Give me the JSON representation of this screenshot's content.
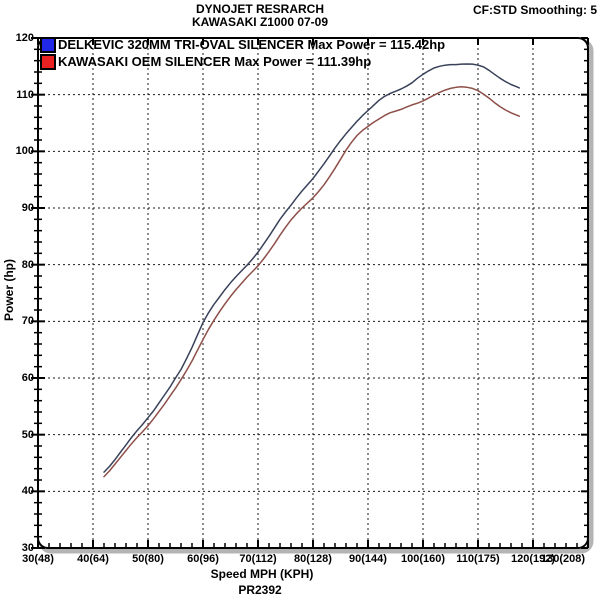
{
  "header": {
    "title_line1": "DYNOJET RESRARCH",
    "title_line2": "KAWASAKI Z1000 07-09",
    "smoothing": "CF:STD Smoothing: 5"
  },
  "footer": {
    "run_id": "PR2392"
  },
  "legend": [
    {
      "label": "DELKEVIC 320MM TRI-OVAL SILENCER  Max Power = 115.42hp",
      "swatch_color": "#2228e8"
    },
    {
      "label": "KAWASAKI OEM SILENCER Max Power = 111.39hp",
      "swatch_color": "#ea2222"
    }
  ],
  "colors": {
    "frame": "#000000",
    "grid": "#1a1a1a",
    "shadow": "#b4b4b4"
  },
  "chart_data": {
    "type": "line",
    "title": "DYNOJET RESRARCH — KAWASAKI Z1000 07-09",
    "xlabel": "Speed MPH (KPH)",
    "ylabel": "Power (hp)",
    "xlim": [
      30,
      130
    ],
    "ylim": [
      30,
      120
    ],
    "x_major_ticks": [
      30,
      40,
      50,
      60,
      70,
      80,
      90,
      100,
      110,
      120,
      130
    ],
    "x_tick_labels": [
      "30(48)",
      "40(64)",
      "50(80)",
      "60(96)",
      "70(112)",
      "80(128)",
      "90(144)",
      "100(160)",
      "110(175)",
      "120(192)",
      "130(208)"
    ],
    "y_major_ticks": [
      30,
      40,
      50,
      60,
      70,
      80,
      90,
      100,
      110,
      120
    ],
    "y_tick_labels": [
      "30",
      "40",
      "50",
      "60",
      "70",
      "80",
      "90",
      "100",
      "110",
      "120"
    ],
    "x_minor_step": 2,
    "y_minor_step": 2,
    "grid": "dashed",
    "legend_position": "top-left",
    "series": [
      {
        "name": "DELKEVIC 320MM TRI-OVAL SILENCER",
        "max_power_hp": 115.42,
        "color": "#39425a",
        "points": [
          [
            42,
            43.4
          ],
          [
            43,
            44.4
          ],
          [
            44,
            45.6
          ],
          [
            45,
            46.9
          ],
          [
            46,
            48.2
          ],
          [
            47,
            49.5
          ],
          [
            48,
            50.7
          ],
          [
            49,
            51.8
          ],
          [
            50,
            53.0
          ],
          [
            51,
            54.2
          ],
          [
            52,
            55.6
          ],
          [
            53,
            57.0
          ],
          [
            54,
            58.4
          ],
          [
            55,
            60.0
          ],
          [
            56,
            61.5
          ],
          [
            57,
            63.4
          ],
          [
            58,
            65.4
          ],
          [
            59,
            67.6
          ],
          [
            60,
            69.8
          ],
          [
            61,
            71.5
          ],
          [
            62,
            73.0
          ],
          [
            63,
            74.3
          ],
          [
            64,
            75.6
          ],
          [
            65,
            76.8
          ],
          [
            66,
            77.9
          ],
          [
            67,
            78.9
          ],
          [
            68,
            79.9
          ],
          [
            69,
            81.0
          ],
          [
            70,
            82.2
          ],
          [
            71,
            83.6
          ],
          [
            72,
            85.0
          ],
          [
            73,
            86.5
          ],
          [
            74,
            88.0
          ],
          [
            75,
            89.3
          ],
          [
            76,
            90.5
          ],
          [
            77,
            91.8
          ],
          [
            78,
            93.0
          ],
          [
            79,
            94.1
          ],
          [
            80,
            95.2
          ],
          [
            81,
            96.5
          ],
          [
            82,
            97.8
          ],
          [
            83,
            99.2
          ],
          [
            84,
            100.6
          ],
          [
            85,
            101.9
          ],
          [
            86,
            103.1
          ],
          [
            87,
            104.2
          ],
          [
            88,
            105.3
          ],
          [
            89,
            106.3
          ],
          [
            90,
            107.2
          ],
          [
            91,
            108.1
          ],
          [
            92,
            109.0
          ],
          [
            93,
            109.7
          ],
          [
            94,
            110.2
          ],
          [
            95,
            110.6
          ],
          [
            96,
            111.0
          ],
          [
            97,
            111.5
          ],
          [
            98,
            112.1
          ],
          [
            99,
            112.9
          ],
          [
            100,
            113.6
          ],
          [
            101,
            114.2
          ],
          [
            102,
            114.7
          ],
          [
            103,
            115.0
          ],
          [
            104,
            115.2
          ],
          [
            105,
            115.3
          ],
          [
            106,
            115.3
          ],
          [
            107,
            115.4
          ],
          [
            108,
            115.42
          ],
          [
            109,
            115.4
          ],
          [
            110,
            115.2
          ],
          [
            111,
            114.9
          ],
          [
            112,
            114.3
          ],
          [
            113,
            113.6
          ],
          [
            114,
            112.9
          ],
          [
            115,
            112.3
          ],
          [
            116,
            111.8
          ],
          [
            117,
            111.4
          ],
          [
            117.5,
            111.2
          ]
        ]
      },
      {
        "name": "KAWASAKI OEM SILENCER",
        "max_power_hp": 111.39,
        "color": "#8d4f49",
        "points": [
          [
            42,
            42.6
          ],
          [
            43,
            43.6
          ],
          [
            44,
            44.8
          ],
          [
            45,
            46.0
          ],
          [
            46,
            47.2
          ],
          [
            47,
            48.4
          ],
          [
            48,
            49.5
          ],
          [
            49,
            50.5
          ],
          [
            50,
            51.6
          ],
          [
            51,
            52.8
          ],
          [
            52,
            54.1
          ],
          [
            53,
            55.4
          ],
          [
            54,
            56.8
          ],
          [
            55,
            58.2
          ],
          [
            56,
            59.7
          ],
          [
            57,
            61.3
          ],
          [
            58,
            63.0
          ],
          [
            59,
            64.9
          ],
          [
            60,
            66.8
          ],
          [
            61,
            68.6
          ],
          [
            62,
            70.2
          ],
          [
            63,
            71.7
          ],
          [
            64,
            73.1
          ],
          [
            65,
            74.4
          ],
          [
            66,
            75.6
          ],
          [
            67,
            76.7
          ],
          [
            68,
            77.8
          ],
          [
            69,
            78.8
          ],
          [
            70,
            79.8
          ],
          [
            71,
            81.0
          ],
          [
            72,
            82.3
          ],
          [
            73,
            83.7
          ],
          [
            74,
            85.2
          ],
          [
            75,
            86.6
          ],
          [
            76,
            87.9
          ],
          [
            77,
            89.0
          ],
          [
            78,
            90.0
          ],
          [
            79,
            90.9
          ],
          [
            80,
            91.8
          ],
          [
            81,
            92.9
          ],
          [
            82,
            94.1
          ],
          [
            83,
            95.5
          ],
          [
            84,
            97.0
          ],
          [
            85,
            98.6
          ],
          [
            86,
            100.2
          ],
          [
            87,
            101.6
          ],
          [
            88,
            102.8
          ],
          [
            89,
            103.7
          ],
          [
            90,
            104.4
          ],
          [
            91,
            105.1
          ],
          [
            92,
            105.7
          ],
          [
            93,
            106.3
          ],
          [
            94,
            106.8
          ],
          [
            95,
            107.1
          ],
          [
            96,
            107.4
          ],
          [
            97,
            107.8
          ],
          [
            98,
            108.2
          ],
          [
            99,
            108.5
          ],
          [
            100,
            108.9
          ],
          [
            101,
            109.4
          ],
          [
            102,
            109.9
          ],
          [
            103,
            110.4
          ],
          [
            104,
            110.8
          ],
          [
            105,
            111.1
          ],
          [
            106,
            111.3
          ],
          [
            107,
            111.39
          ],
          [
            108,
            111.3
          ],
          [
            109,
            111.1
          ],
          [
            110,
            110.7
          ],
          [
            111,
            110.1
          ],
          [
            112,
            109.4
          ],
          [
            113,
            108.6
          ],
          [
            114,
            107.9
          ],
          [
            115,
            107.3
          ],
          [
            116,
            106.8
          ],
          [
            117,
            106.4
          ],
          [
            117.5,
            106.2
          ]
        ]
      }
    ]
  }
}
